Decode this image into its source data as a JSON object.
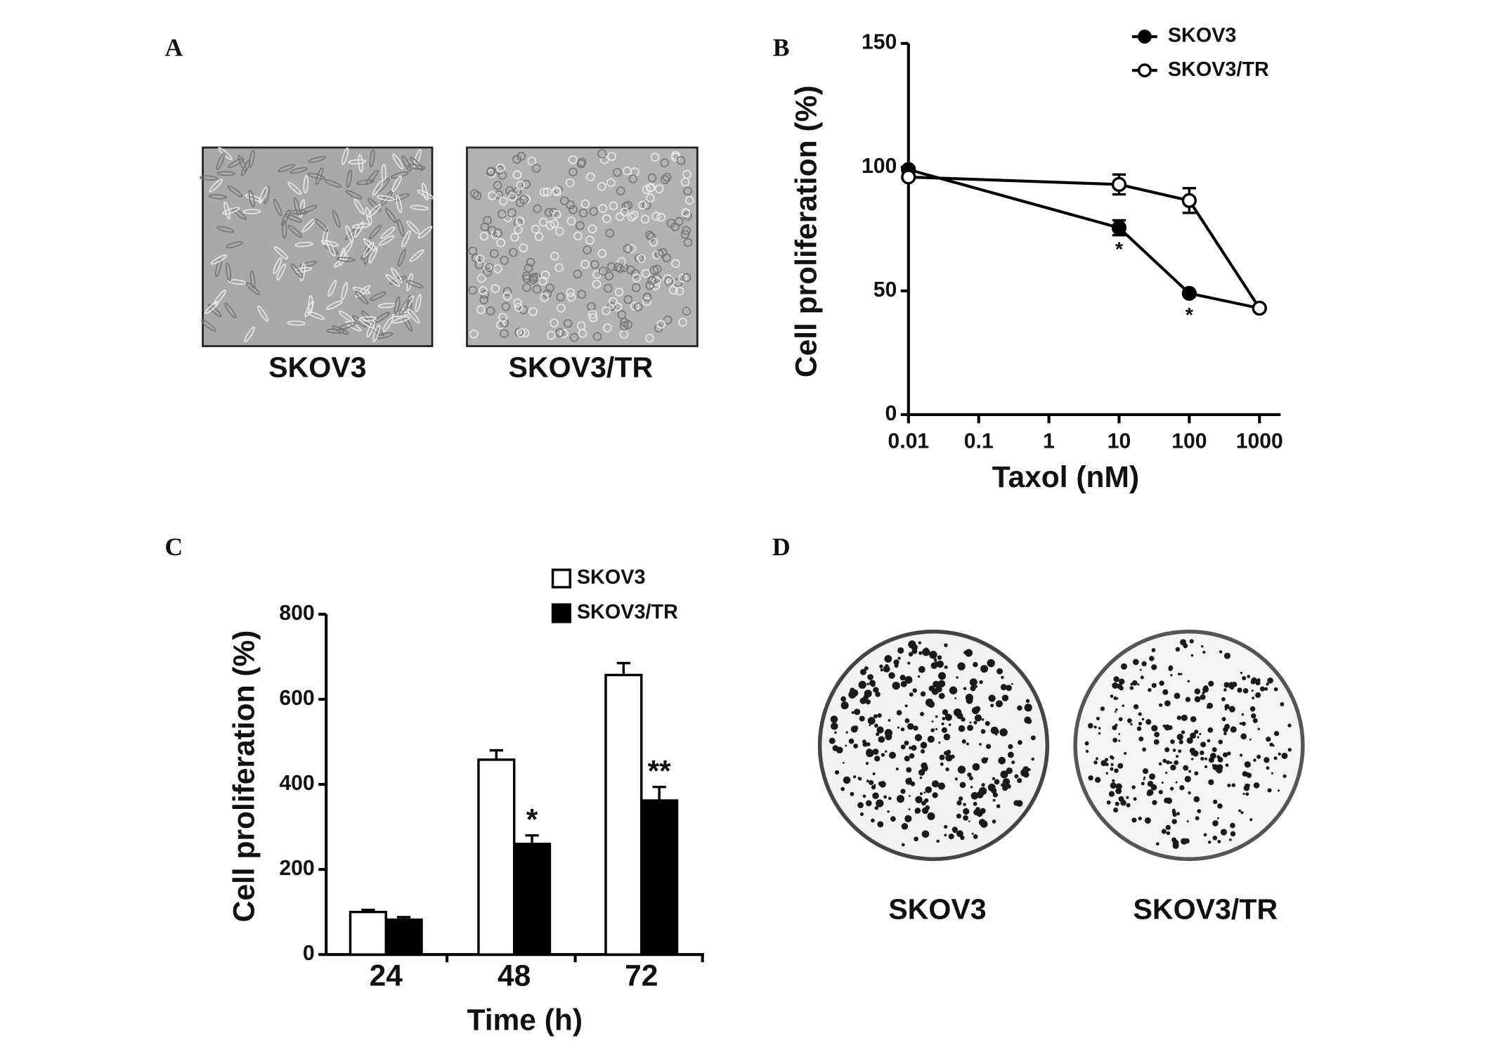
{
  "panel_labels": [
    "A",
    "B",
    "C",
    "D"
  ],
  "images": {
    "A": {
      "labels": [
        "SKOV3",
        "SKOV3/TR"
      ]
    },
    "D": {
      "labels": [
        "SKOV3",
        "SKOV3/TR"
      ]
    }
  },
  "chart_data": [
    {
      "type": "line",
      "log_x": true,
      "x_label": "Taxol (nM)",
      "y_label": "Cell proliferation (%)",
      "x": [
        0.01,
        10,
        100,
        1000
      ],
      "series": [
        {
          "name": "SKOV3",
          "color": "#000000",
          "marker_fill": "#000000",
          "values": [
            99,
            75.5,
            49,
            43
          ],
          "errors": [
            null,
            3,
            null,
            null
          ]
        },
        {
          "name": "SKOV3/TR",
          "color": "#000000",
          "marker_fill": "#ffffff",
          "values": [
            96,
            93,
            86.5,
            43
          ],
          "errors": [
            null,
            4,
            5,
            null
          ]
        }
      ],
      "annotations": [
        {
          "text": "*",
          "x": 10,
          "series": "SKOV3"
        },
        {
          "text": "*",
          "x": 100,
          "series": "SKOV3"
        }
      ],
      "xlim": [
        0.01,
        2000
      ],
      "xticks": [
        0.01,
        0.1,
        1,
        10,
        100,
        1000
      ],
      "ylim": [
        0,
        150
      ],
      "yticks": [
        0,
        50,
        100,
        150
      ],
      "legend": "top-right"
    },
    {
      "type": "bar",
      "x_label": "Time (h)",
      "y_label": "Cell proliferation (%)",
      "categories": [
        "24",
        "48",
        "72"
      ],
      "series": [
        {
          "name": "SKOV3",
          "color": "#ffffff",
          "values": [
            100,
            458,
            657
          ],
          "errors": [
            5,
            22,
            28
          ]
        },
        {
          "name": "SKOV3/TR",
          "color": "#000000",
          "values": [
            82,
            260,
            362
          ],
          "errors": [
            6,
            20,
            32
          ]
        }
      ],
      "annotations": [
        {
          "text": "*",
          "category": "48",
          "series": "SKOV3/TR"
        },
        {
          "text": "**",
          "category": "72",
          "series": "SKOV3/TR"
        }
      ],
      "ylim": [
        0,
        800
      ],
      "yticks": [
        0,
        200,
        400,
        600,
        800
      ],
      "legend": "top-right"
    }
  ]
}
